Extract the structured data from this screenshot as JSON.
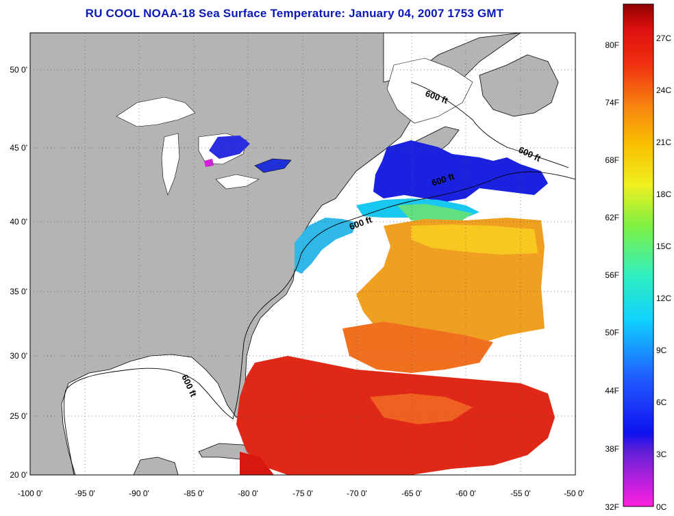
{
  "title": "RU COOL  NOAA-18  Sea Surface Temperature:  January 04, 2007 1753 GMT",
  "map": {
    "lon_ticks": [
      "-100 0'",
      "-95 0'",
      "-90 0'",
      "-85 0'",
      "-80 0'",
      "-75 0'",
      "-70 0'",
      "-65 0'",
      "-60 0'",
      "-55 0'",
      "-50 0'"
    ],
    "lat_ticks": [
      "20 0'",
      "25 0'",
      "30 0'",
      "35 0'",
      "40 0'",
      "45 0'",
      "50 0'"
    ],
    "contour_labels": [
      "600 ft",
      "600 ft",
      "600 ft",
      "600 ft",
      "600 ft"
    ],
    "colors": {
      "land": "#b4b4b4",
      "cloud": "#ffffff",
      "frame": "#000000"
    }
  },
  "colorbar": {
    "fahrenheit_ticks": [
      "80F",
      "74F",
      "68F",
      "62F",
      "56F",
      "50F",
      "44F",
      "38F",
      "32F"
    ],
    "celsius_ticks": [
      "27C",
      "24C",
      "21C",
      "18C",
      "15C",
      "12C",
      "9C",
      "6C",
      "3C",
      "0C"
    ]
  }
}
